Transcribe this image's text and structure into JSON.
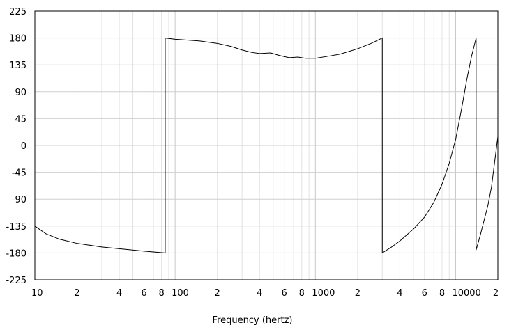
{
  "chart_data": {
    "type": "line",
    "title": "",
    "xlabel": "Frequency (hertz)",
    "ylabel": "",
    "x_scale": "log",
    "xlim": [
      10,
      20000
    ],
    "ylim": [
      -225,
      225
    ],
    "grid": true,
    "y_ticks": [
      "225",
      "180",
      "135",
      "90",
      "45",
      "0",
      "-45",
      "-90",
      "-135",
      "-180",
      "-225"
    ],
    "y_tick_values": [
      225,
      180,
      135,
      90,
      45,
      0,
      -45,
      -90,
      -135,
      -180,
      -225
    ],
    "x_ticks": [
      {
        "value": 10,
        "label": "10"
      },
      {
        "value": 20,
        "label": "2"
      },
      {
        "value": 40,
        "label": "4"
      },
      {
        "value": 60,
        "label": "6"
      },
      {
        "value": 80,
        "label": "8"
      },
      {
        "value": 100,
        "label": "100"
      },
      {
        "value": 200,
        "label": "2"
      },
      {
        "value": 400,
        "label": "4"
      },
      {
        "value": 600,
        "label": "6"
      },
      {
        "value": 800,
        "label": "8"
      },
      {
        "value": 1000,
        "label": "1000"
      },
      {
        "value": 2000,
        "label": "2"
      },
      {
        "value": 4000,
        "label": "4"
      },
      {
        "value": 6000,
        "label": "6"
      },
      {
        "value": 8000,
        "label": "8"
      },
      {
        "value": 10000,
        "label": "10000"
      },
      {
        "value": 20000,
        "label": "2"
      }
    ],
    "series": [
      {
        "values": [
          [
            10,
            -135
          ],
          [
            12,
            -148
          ],
          [
            15,
            -157
          ],
          [
            20,
            -164
          ],
          [
            30,
            -170
          ],
          [
            40,
            -173
          ],
          [
            60,
            -177
          ],
          [
            85,
            -180
          ],
          [
            85,
            180
          ],
          [
            100,
            178
          ],
          [
            150,
            175
          ],
          [
            200,
            171
          ],
          [
            250,
            166
          ],
          [
            300,
            160
          ],
          [
            350,
            156
          ],
          [
            400,
            154
          ],
          [
            480,
            155
          ],
          [
            550,
            151
          ],
          [
            650,
            147
          ],
          [
            750,
            148
          ],
          [
            850,
            146
          ],
          [
            1000,
            146
          ],
          [
            1200,
            149
          ],
          [
            1500,
            153
          ],
          [
            2000,
            162
          ],
          [
            2500,
            171
          ],
          [
            3000,
            180
          ],
          [
            3000,
            -180
          ],
          [
            3500,
            -170
          ],
          [
            4000,
            -160
          ],
          [
            5000,
            -140
          ],
          [
            6000,
            -120
          ],
          [
            7000,
            -95
          ],
          [
            8000,
            -65
          ],
          [
            9000,
            -30
          ],
          [
            10000,
            10
          ],
          [
            11000,
            60
          ],
          [
            12000,
            110
          ],
          [
            13000,
            150
          ],
          [
            14000,
            180
          ],
          [
            14000,
            -175
          ],
          [
            15000,
            -150
          ],
          [
            17000,
            -100
          ],
          [
            18000,
            -70
          ],
          [
            20000,
            15
          ]
        ]
      }
    ]
  }
}
